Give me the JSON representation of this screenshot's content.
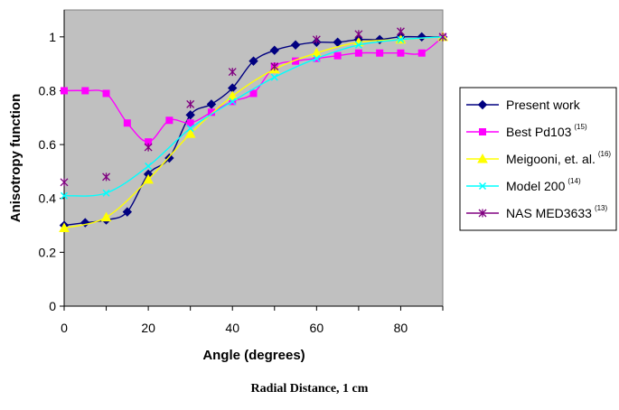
{
  "chart_data": {
    "type": "line",
    "xlabel": "Angle (degrees)",
    "ylabel": "Anisotropy function",
    "xlim": [
      0,
      90
    ],
    "ylim": [
      0,
      1.1
    ],
    "xticks": [
      "0",
      "20",
      "40",
      "60",
      "80"
    ],
    "yticks": [
      "0",
      "0.2",
      "0.4",
      "0.6",
      "0.8",
      "1"
    ],
    "grid": false,
    "legend_position": "right",
    "plot_background": "#c0c0c0",
    "series": [
      {
        "name": "Present work",
        "superscript": "",
        "color": "#000080",
        "marker": "diamond",
        "x": [
          0,
          5,
          10,
          15,
          20,
          25,
          30,
          35,
          40,
          45,
          50,
          55,
          60,
          65,
          70,
          75,
          80,
          85,
          90
        ],
        "y": [
          0.3,
          0.31,
          0.32,
          0.35,
          0.49,
          0.55,
          0.71,
          0.75,
          0.81,
          0.91,
          0.95,
          0.97,
          0.98,
          0.98,
          0.99,
          0.99,
          1.0,
          1.0,
          1.0
        ]
      },
      {
        "name": "Best Pd103",
        "superscript": "(15)",
        "color": "#ff00ff",
        "marker": "square",
        "x": [
          0,
          5,
          10,
          15,
          20,
          25,
          30,
          35,
          40,
          45,
          50,
          55,
          60,
          65,
          70,
          75,
          80,
          85,
          90
        ],
        "y": [
          0.8,
          0.8,
          0.79,
          0.68,
          0.61,
          0.69,
          0.68,
          0.72,
          0.76,
          0.79,
          0.89,
          0.91,
          0.92,
          0.93,
          0.94,
          0.94,
          0.94,
          0.94,
          1.0
        ]
      },
      {
        "name": "Meigooni, et. al.",
        "superscript": "(16)",
        "color": "#ffff00",
        "marker": "triangle",
        "x": [
          0,
          10,
          20,
          30,
          40,
          50,
          60,
          70,
          80,
          90
        ],
        "y": [
          0.29,
          0.33,
          0.47,
          0.64,
          0.78,
          0.88,
          0.94,
          0.98,
          0.99,
          1.0
        ]
      },
      {
        "name": "Model 200",
        "superscript": "(14)",
        "color": "#00ffff",
        "marker": "x",
        "x": [
          0,
          10,
          20,
          30,
          40,
          50,
          60,
          70,
          80,
          90
        ],
        "y": [
          0.41,
          0.42,
          0.52,
          0.66,
          0.76,
          0.85,
          0.92,
          0.97,
          0.99,
          1.0
        ]
      },
      {
        "name": "NAS MED3633",
        "superscript": "(13)",
        "color": "#800080",
        "marker": "star",
        "x": [
          0,
          10,
          20,
          30,
          40,
          50,
          60,
          70,
          80,
          90
        ],
        "y": [
          0.46,
          0.48,
          0.59,
          0.75,
          0.87,
          0.89,
          0.99,
          1.01,
          1.02,
          1.0
        ]
      }
    ]
  },
  "caption": "Radial Distance, 1 cm"
}
